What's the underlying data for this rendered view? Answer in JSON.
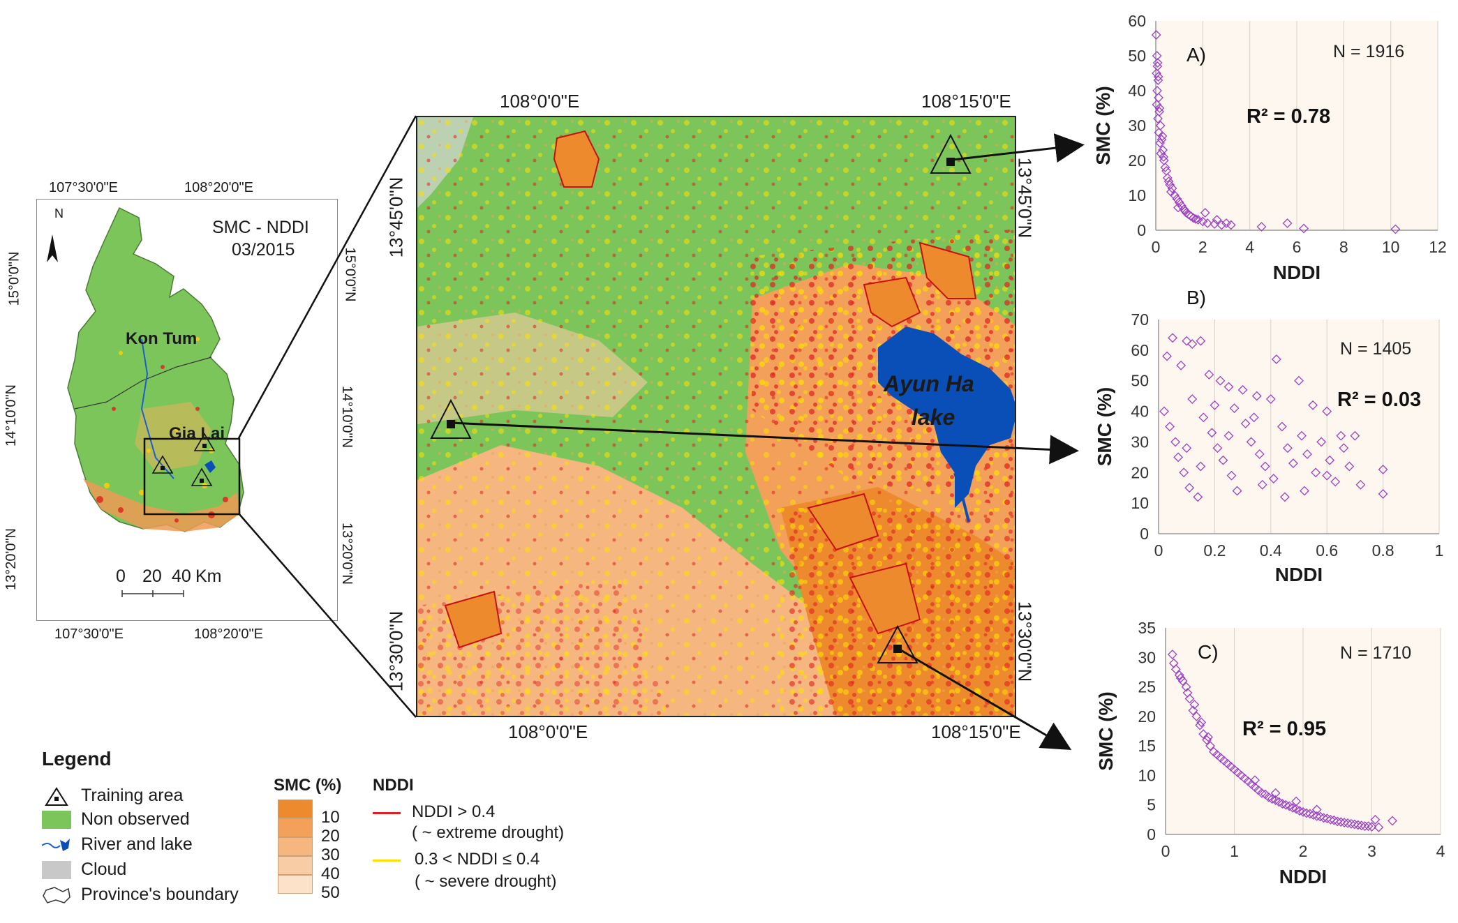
{
  "overview_map": {
    "title_line1": "SMC - NDDI",
    "title_line2": "03/2015",
    "north": "N",
    "lon_top": [
      "107°30'0\"E",
      "108°20'0\"E"
    ],
    "lon_bottom": [
      "107°30'0\"E",
      "108°20'0\"E"
    ],
    "lat_left": [
      "15°0'0\"N",
      "14°10'0\"N",
      "13°20'0\"N"
    ],
    "lat_right": [
      "15°0'0\"N",
      "14°10'0\"N",
      "13°20'0\"N"
    ],
    "region_labels": [
      "Kon Tum",
      "Gia Lai"
    ],
    "scalebar": {
      "ticks": [
        "0",
        "20",
        "40"
      ],
      "unit": "Km"
    }
  },
  "main_map": {
    "lon_top": [
      "108°0'0\"E",
      "108°15'0\"E"
    ],
    "lon_bottom": [
      "108°0'0\"E",
      "108°15'0\"E"
    ],
    "lat_left": [
      "13°45'0\"N",
      "13°30'0\"N"
    ],
    "lat_right": [
      "13°45'0\"N",
      "13°30'0\"N"
    ],
    "lake_label_line1": "Ayun Ha",
    "lake_label_line2": "lake",
    "colors": {
      "green": "#7cc55a",
      "orange": "#ee9a55",
      "red": "#e02020",
      "yellow": "#ffe000",
      "water": "#0a4fb8"
    }
  },
  "legend": {
    "title": "Legend",
    "items": [
      "Training area",
      "Non observed",
      "River and lake",
      "Cloud",
      "Province's boundary"
    ],
    "smc_title": "SMC (%)",
    "smc_values": [
      "10",
      "20",
      "30",
      "40",
      "50"
    ],
    "smc_colors": [
      "#ee8a2e",
      "#f2a05a",
      "#f5b680",
      "#f8cca4",
      "#fbe2c8"
    ],
    "nddi_title": "NDDI",
    "nddi_items": [
      {
        "line1": "NDDI > 0.4",
        "line2": "( ~ extreme drought)",
        "color": "#e02020"
      },
      {
        "line1": "0.3 < NDDI ≤ 0.4",
        "line2": "( ~ severe drought)",
        "color": "#ffe000"
      }
    ]
  },
  "chart_data": [
    {
      "type": "scatter",
      "panel": "A)",
      "n_label": "N = 1916",
      "r2_label": "R² = 0.78",
      "xlabel": "NDDI",
      "ylabel": "SMC (%)",
      "xlim": [
        0,
        12
      ],
      "ylim": [
        0,
        60
      ],
      "xticks": [
        "0",
        "2",
        "4",
        "6",
        "8",
        "10",
        "12"
      ],
      "yticks": [
        "0",
        "10",
        "20",
        "30",
        "40",
        "50",
        "60"
      ],
      "points": [
        [
          0.02,
          56
        ],
        [
          0.05,
          50
        ],
        [
          0.08,
          48
        ],
        [
          0.03,
          45
        ],
        [
          0.1,
          43
        ],
        [
          0.06,
          40
        ],
        [
          0.12,
          38
        ],
        [
          0.04,
          36
        ],
        [
          0.15,
          34
        ],
        [
          0.09,
          32
        ],
        [
          0.2,
          30
        ],
        [
          0.13,
          28
        ],
        [
          0.25,
          26
        ],
        [
          0.18,
          25
        ],
        [
          0.3,
          23
        ],
        [
          0.22,
          22
        ],
        [
          0.35,
          20
        ],
        [
          0.4,
          18
        ],
        [
          0.45,
          17
        ],
        [
          0.5,
          15
        ],
        [
          0.55,
          14
        ],
        [
          0.6,
          13
        ],
        [
          0.7,
          12
        ],
        [
          0.8,
          10
        ],
        [
          0.9,
          9
        ],
        [
          1.0,
          8
        ],
        [
          1.1,
          7
        ],
        [
          1.2,
          6
        ],
        [
          1.3,
          5
        ],
        [
          1.4,
          4.5
        ],
        [
          1.5,
          4
        ],
        [
          1.6,
          3.5
        ],
        [
          1.8,
          3
        ],
        [
          2.0,
          2.5
        ],
        [
          2.2,
          2
        ],
        [
          2.5,
          1.8
        ],
        [
          2.8,
          1.5
        ],
        [
          3.0,
          2
        ],
        [
          3.2,
          1.5
        ],
        [
          4.5,
          1
        ],
        [
          5.6,
          2
        ],
        [
          6.3,
          0.5
        ],
        [
          10.2,
          0.3
        ],
        [
          0.07,
          47
        ],
        [
          0.11,
          44
        ],
        [
          0.16,
          35
        ],
        [
          0.28,
          27
        ],
        [
          0.33,
          21
        ],
        [
          0.65,
          11
        ],
        [
          1.7,
          3.2
        ],
        [
          2.1,
          5
        ],
        [
          2.6,
          3
        ],
        [
          0.95,
          6.5
        ],
        [
          1.25,
          5.5
        ]
      ]
    },
    {
      "type": "scatter",
      "panel": "B)",
      "n_label": "N = 1405",
      "r2_label": "R² = 0.03",
      "xlabel": "NDDI",
      "ylabel": "SMC (%)",
      "xlim": [
        0,
        1
      ],
      "ylim": [
        0,
        70
      ],
      "xticks": [
        "0",
        "0.2",
        "0.4",
        "0.6",
        "0.8",
        "1"
      ],
      "yticks": [
        "0",
        "10",
        "20",
        "30",
        "40",
        "50",
        "60",
        "70"
      ],
      "points": [
        [
          0.05,
          64
        ],
        [
          0.1,
          63
        ],
        [
          0.12,
          62
        ],
        [
          0.15,
          63
        ],
        [
          0.03,
          58
        ],
        [
          0.08,
          55
        ],
        [
          0.18,
          52
        ],
        [
          0.22,
          50
        ],
        [
          0.25,
          48
        ],
        [
          0.3,
          47
        ],
        [
          0.35,
          45
        ],
        [
          0.4,
          44
        ],
        [
          0.42,
          57
        ],
        [
          0.5,
          50
        ],
        [
          0.55,
          42
        ],
        [
          0.6,
          40
        ],
        [
          0.65,
          32
        ],
        [
          0.7,
          32
        ],
        [
          0.72,
          16
        ],
        [
          0.8,
          21
        ],
        [
          0.8,
          13
        ],
        [
          0.02,
          40
        ],
        [
          0.04,
          35
        ],
        [
          0.06,
          30
        ],
        [
          0.07,
          25
        ],
        [
          0.09,
          20
        ],
        [
          0.11,
          15
        ],
        [
          0.14,
          12
        ],
        [
          0.16,
          38
        ],
        [
          0.19,
          33
        ],
        [
          0.21,
          28
        ],
        [
          0.23,
          24
        ],
        [
          0.26,
          19
        ],
        [
          0.28,
          14
        ],
        [
          0.31,
          36
        ],
        [
          0.33,
          30
        ],
        [
          0.36,
          26
        ],
        [
          0.38,
          22
        ],
        [
          0.41,
          18
        ],
        [
          0.44,
          35
        ],
        [
          0.46,
          28
        ],
        [
          0.48,
          23
        ],
        [
          0.51,
          32
        ],
        [
          0.53,
          26
        ],
        [
          0.56,
          20
        ],
        [
          0.58,
          30
        ],
        [
          0.61,
          24
        ],
        [
          0.63,
          17
        ],
        [
          0.66,
          28
        ],
        [
          0.68,
          22
        ],
        [
          0.12,
          44
        ],
        [
          0.2,
          42
        ],
        [
          0.27,
          41
        ],
        [
          0.34,
          38
        ],
        [
          0.1,
          28
        ],
        [
          0.15,
          22
        ],
        [
          0.25,
          32
        ],
        [
          0.37,
          16
        ],
        [
          0.45,
          12
        ],
        [
          0.52,
          14
        ],
        [
          0.6,
          19
        ]
      ]
    },
    {
      "type": "scatter",
      "panel": "C)",
      "n_label": "N = 1710",
      "r2_label": "R² = 0.95",
      "xlabel": "NDDI",
      "ylabel": "SMC (%)",
      "xlim": [
        0,
        4
      ],
      "ylim": [
        0,
        35
      ],
      "xticks": [
        "0",
        "1",
        "2",
        "3",
        "4"
      ],
      "yticks": [
        "0",
        "5",
        "10",
        "15",
        "20",
        "25",
        "30",
        "35"
      ],
      "points": [
        [
          0.1,
          30.5
        ],
        [
          0.15,
          28
        ],
        [
          0.2,
          27
        ],
        [
          0.25,
          26
        ],
        [
          0.3,
          25
        ],
        [
          0.35,
          23
        ],
        [
          0.4,
          21
        ],
        [
          0.45,
          20
        ],
        [
          0.5,
          18.5
        ],
        [
          0.55,
          17
        ],
        [
          0.6,
          16
        ],
        [
          0.65,
          15
        ],
        [
          0.7,
          14
        ],
        [
          0.8,
          13
        ],
        [
          0.9,
          12
        ],
        [
          1.0,
          11
        ],
        [
          1.1,
          10
        ],
        [
          1.2,
          9
        ],
        [
          1.3,
          8
        ],
        [
          1.4,
          7
        ],
        [
          1.5,
          6.3
        ],
        [
          1.6,
          5.8
        ],
        [
          1.7,
          5.2
        ],
        [
          1.8,
          4.8
        ],
        [
          1.9,
          4.3
        ],
        [
          2.0,
          3.8
        ],
        [
          2.1,
          3.5
        ],
        [
          2.2,
          3.1
        ],
        [
          2.3,
          2.8
        ],
        [
          2.4,
          2.5
        ],
        [
          2.5,
          2.2
        ],
        [
          2.6,
          2
        ],
        [
          2.7,
          1.8
        ],
        [
          2.8,
          1.6
        ],
        [
          2.9,
          1.4
        ],
        [
          3.0,
          1.3
        ],
        [
          3.1,
          1.2
        ],
        [
          3.3,
          2.3
        ],
        [
          0.12,
          29
        ],
        [
          0.22,
          26.5
        ],
        [
          0.32,
          24
        ],
        [
          0.42,
          22
        ],
        [
          0.52,
          19
        ],
        [
          0.62,
          16.5
        ],
        [
          0.75,
          13.5
        ],
        [
          0.85,
          12.5
        ],
        [
          0.95,
          11.5
        ],
        [
          1.05,
          10.5
        ],
        [
          1.15,
          9.5
        ],
        [
          1.25,
          8.5
        ],
        [
          1.35,
          7.5
        ],
        [
          1.45,
          6.8
        ],
        [
          1.55,
          6
        ],
        [
          1.65,
          5.5
        ],
        [
          1.75,
          5
        ],
        [
          1.85,
          4.5
        ],
        [
          1.95,
          4
        ],
        [
          2.05,
          3.6
        ],
        [
          2.15,
          3.3
        ],
        [
          2.25,
          3
        ],
        [
          2.35,
          2.7
        ],
        [
          2.45,
          2.4
        ],
        [
          2.55,
          2.1
        ],
        [
          2.65,
          1.9
        ],
        [
          2.75,
          1.7
        ],
        [
          2.85,
          1.5
        ],
        [
          2.95,
          1.4
        ],
        [
          3.05,
          2.5
        ],
        [
          1.9,
          5.6
        ],
        [
          2.2,
          4.2
        ],
        [
          1.6,
          7
        ],
        [
          1.3,
          9.2
        ]
      ]
    }
  ]
}
